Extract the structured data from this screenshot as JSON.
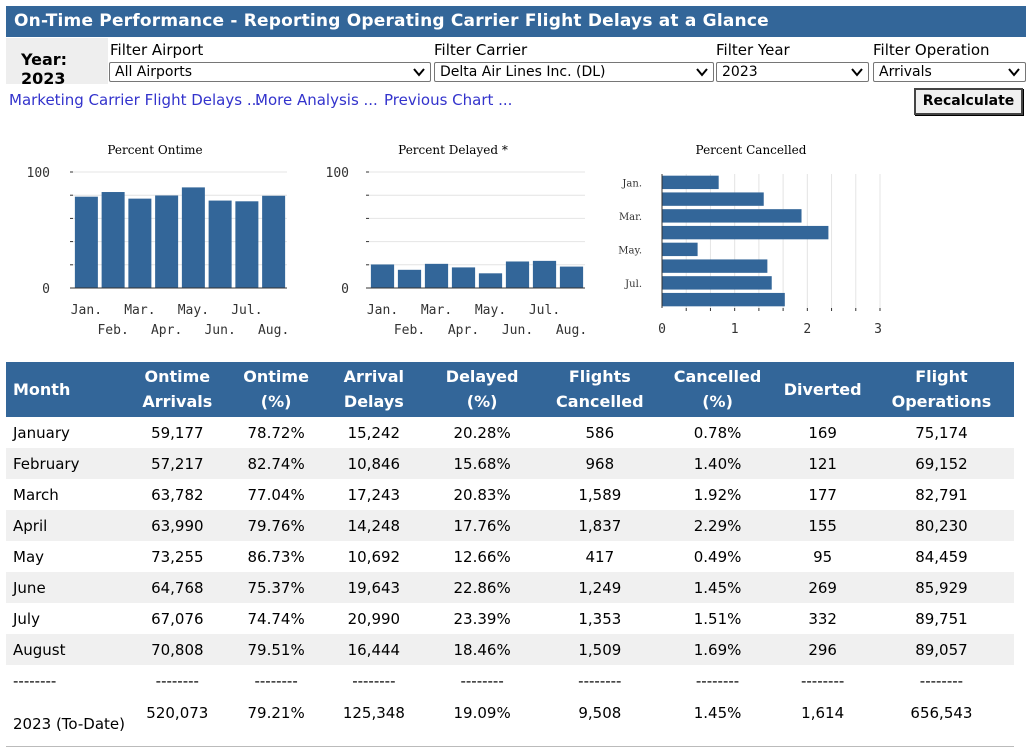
{
  "title": "On-Time Performance - Reporting Operating Carrier Flight Delays at a Glance",
  "year_label": "Year: 2023",
  "filters": [
    {
      "label": "Filter Airport",
      "value": "All Airports"
    },
    {
      "label": "Filter Carrier",
      "value": "Delta Air Lines Inc. (DL)"
    },
    {
      "label": "Filter Year",
      "value": "2023"
    },
    {
      "label": "Filter Operation",
      "value": "Arrivals"
    }
  ],
  "links": [
    "Marketing Carrier Flight Delays ...",
    "More Analysis ...",
    "Previous Chart ..."
  ],
  "recalculate_label": "Recalculate",
  "colors": {
    "header": "#336699",
    "bar": "#336699",
    "link": "#3333cc"
  },
  "chart_data": [
    {
      "type": "bar",
      "title": "Percent Ontime",
      "categories": [
        "Jan.",
        "Feb.",
        "Mar.",
        "Apr.",
        "May.",
        "Jun.",
        "Jul.",
        "Aug."
      ],
      "values": [
        78.72,
        82.74,
        77.04,
        79.76,
        86.73,
        75.37,
        74.74,
        79.51
      ],
      "yticks": [
        "100",
        "0"
      ],
      "ylim": [
        0,
        100
      ]
    },
    {
      "type": "bar",
      "title": "Percent Delayed *",
      "categories": [
        "Jan.",
        "Feb.",
        "Mar.",
        "Apr.",
        "May.",
        "Jun.",
        "Jul.",
        "Aug."
      ],
      "values": [
        20.28,
        15.68,
        20.83,
        17.76,
        12.66,
        22.86,
        23.39,
        18.46
      ],
      "yticks": [
        "100",
        "0"
      ],
      "ylim": [
        0,
        100
      ]
    },
    {
      "type": "bar",
      "orientation": "horizontal",
      "title": "Percent Cancelled",
      "categories": [
        "Jan.",
        "Feb.",
        "Mar.",
        "Apr.",
        "May.",
        "Jun.",
        "Jul.",
        "Aug."
      ],
      "category_labels_shown": [
        "Jan.",
        "Mar.",
        "May.",
        "Jul."
      ],
      "values": [
        0.78,
        1.4,
        1.92,
        2.29,
        0.49,
        1.45,
        1.51,
        1.69
      ],
      "xticks": [
        "0",
        "1",
        "2",
        "3"
      ],
      "xlim": [
        0,
        3
      ]
    }
  ],
  "table": {
    "headers": [
      [
        "Month"
      ],
      [
        "Ontime",
        "Arrivals"
      ],
      [
        "Ontime",
        "(%)"
      ],
      [
        "Arrival",
        "Delays"
      ],
      [
        "Delayed",
        "(%)"
      ],
      [
        "Flights",
        "Cancelled"
      ],
      [
        "Cancelled",
        "(%)"
      ],
      [
        "Diverted"
      ],
      [
        "Flight",
        "Operations"
      ]
    ],
    "rows": [
      [
        "January",
        "59,177",
        "78.72%",
        "15,242",
        "20.28%",
        "586",
        "0.78%",
        "169",
        "75,174"
      ],
      [
        "February",
        "57,217",
        "82.74%",
        "10,846",
        "15.68%",
        "968",
        "1.40%",
        "121",
        "69,152"
      ],
      [
        "March",
        "63,782",
        "77.04%",
        "17,243",
        "20.83%",
        "1,589",
        "1.92%",
        "177",
        "82,791"
      ],
      [
        "April",
        "63,990",
        "79.76%",
        "14,248",
        "17.76%",
        "1,837",
        "2.29%",
        "155",
        "80,230"
      ],
      [
        "May",
        "73,255",
        "86.73%",
        "10,692",
        "12.66%",
        "417",
        "0.49%",
        "95",
        "84,459"
      ],
      [
        "June",
        "64,768",
        "75.37%",
        "19,643",
        "22.86%",
        "1,249",
        "1.45%",
        "269",
        "85,929"
      ],
      [
        "July",
        "67,076",
        "74.74%",
        "20,990",
        "23.39%",
        "1,353",
        "1.51%",
        "332",
        "89,751"
      ],
      [
        "August",
        "70,808",
        "79.51%",
        "16,444",
        "18.46%",
        "1,509",
        "1.69%",
        "296",
        "89,057"
      ],
      [
        "--------",
        "--------",
        "--------",
        "--------",
        "--------",
        "--------",
        "--------",
        "--------",
        "--------"
      ]
    ],
    "total": [
      "2023 (To-Date)",
      "520,073",
      "79.21%",
      "125,348",
      "19.09%",
      "9,508",
      "1.45%",
      "1,614",
      "656,543"
    ]
  }
}
